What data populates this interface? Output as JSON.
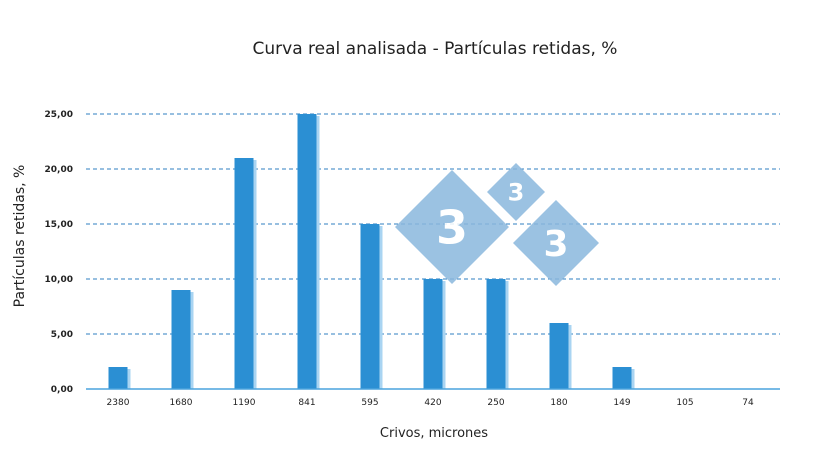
{
  "chart_data": {
    "type": "bar",
    "title": "Curva real analisada - Partículas retidas, %",
    "xlabel": "Crivos, micrones",
    "ylabel": "Partículas retidas, %",
    "categories": [
      "2380",
      "1680",
      "1190",
      "841",
      "595",
      "420",
      "250",
      "180",
      "149",
      "105",
      "74"
    ],
    "values": [
      2,
      9,
      21,
      25,
      15,
      10,
      10,
      6,
      2,
      0,
      0
    ],
    "ylim": [
      0,
      25
    ],
    "y_ticks": [
      "0,00",
      "5,00",
      "10,00",
      "15,00",
      "20,00",
      "25,00"
    ],
    "grid": "horizontal dashed",
    "legend": "none"
  },
  "colors": {
    "bar": "#2b8fd3",
    "bar_shadow": "#a9d4f2",
    "grid": "#2f7fc0",
    "axis": "#4aa3dd",
    "text": "#222222",
    "watermark": "#8ab8dd"
  },
  "watermark": {
    "digits": [
      "3",
      "3",
      "3"
    ]
  }
}
